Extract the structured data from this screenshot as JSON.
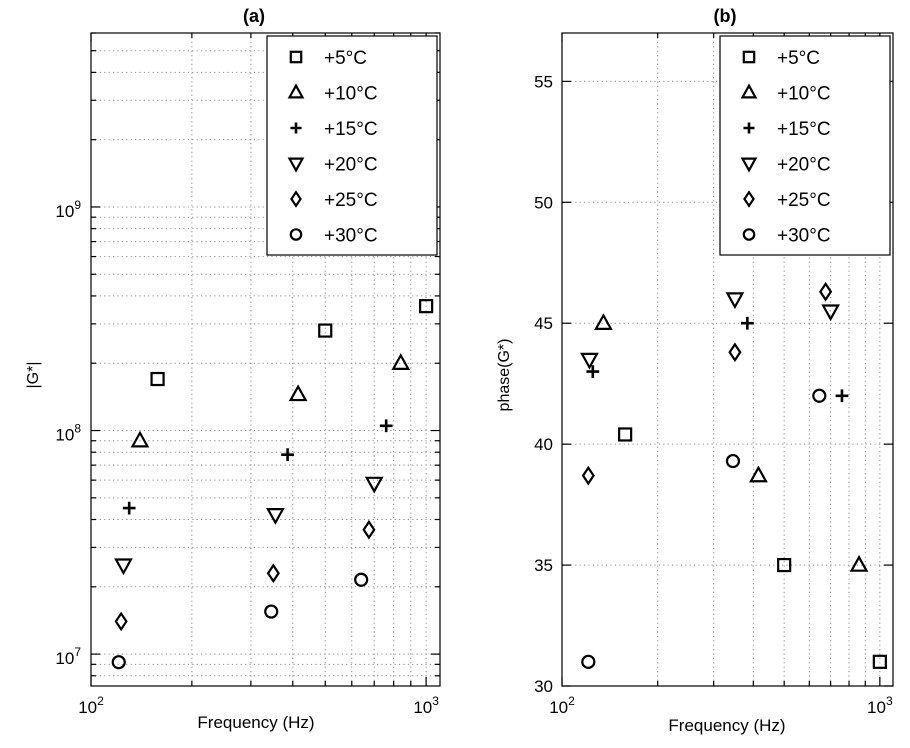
{
  "chart_data": [
    {
      "panel_label": "(a)",
      "type": "scatter",
      "xlabel": "Frequency (Hz)",
      "ylabel": "|G*|",
      "x_scale": "log",
      "y_scale": "log",
      "xlim": [
        100,
        1100
      ],
      "ylim": [
        7200000,
        6000000000
      ],
      "x_tick_labels": [
        {
          "value": 100,
          "base": "10",
          "exp": "2"
        },
        {
          "value": 1000,
          "base": "10",
          "exp": "3"
        }
      ],
      "y_tick_labels": [
        {
          "value": 10000000,
          "base": "10",
          "exp": "7"
        },
        {
          "value": 100000000,
          "base": "10",
          "exp": "8"
        },
        {
          "value": 1000000000,
          "base": "10",
          "exp": "9"
        }
      ],
      "grid": true,
      "legend_position": "top-right",
      "series": [
        {
          "name": "+5°C",
          "marker": "square",
          "points": [
            [
              158,
              170000000
            ],
            [
              500,
              280000000
            ],
            [
              1000,
              360000000
            ]
          ]
        },
        {
          "name": "+10°C",
          "marker": "triangle-up",
          "points": [
            [
              140,
              90000000
            ],
            [
              415,
              145000000
            ],
            [
              840,
              200000000
            ]
          ]
        },
        {
          "name": "+15°C",
          "marker": "plus",
          "points": [
            [
              130,
              45000000
            ],
            [
              386,
              78000000
            ],
            [
              760,
              105000000
            ]
          ]
        },
        {
          "name": "+20°C",
          "marker": "triangle-down",
          "points": [
            [
              125,
              25000000
            ],
            [
              355,
              42000000
            ],
            [
              700,
              58000000
            ]
          ]
        },
        {
          "name": "+25°C",
          "marker": "diamond",
          "points": [
            [
              123,
              14000000
            ],
            [
              350,
              23000000
            ],
            [
              675,
              36000000
            ]
          ]
        },
        {
          "name": "+30°C",
          "marker": "circle",
          "points": [
            [
              121,
              9200000
            ],
            [
              345,
              15500000
            ],
            [
              640,
              21500000
            ]
          ]
        }
      ]
    },
    {
      "panel_label": "(b)",
      "type": "scatter",
      "xlabel": "Frequency (Hz)",
      "ylabel": "phase(G*)",
      "x_scale": "log",
      "y_scale": "linear",
      "xlim": [
        100,
        1100
      ],
      "ylim": [
        30,
        57
      ],
      "x_tick_labels": [
        {
          "value": 100,
          "base": "10",
          "exp": "2"
        },
        {
          "value": 1000,
          "base": "10",
          "exp": "3"
        }
      ],
      "y_ticks": [
        30,
        35,
        40,
        45,
        50,
        55
      ],
      "grid": true,
      "legend_position": "top-right",
      "series": [
        {
          "name": "+5°C",
          "marker": "square",
          "points": [
            [
              158,
              40.4
            ],
            [
              500,
              35.0
            ],
            [
              1000,
              31.0
            ]
          ]
        },
        {
          "name": "+10°C",
          "marker": "triangle-up",
          "points": [
            [
              135,
              45.0
            ],
            [
              415,
              38.7
            ],
            [
              860,
              35.0
            ]
          ]
        },
        {
          "name": "+15°C",
          "marker": "plus",
          "points": [
            [
              125,
              43.0
            ],
            [
              383,
              45.0
            ],
            [
              760,
              42.0
            ]
          ]
        },
        {
          "name": "+20°C",
          "marker": "triangle-down",
          "points": [
            [
              122,
              43.5
            ],
            [
              350,
              46.0
            ],
            [
              700,
              45.5
            ]
          ]
        },
        {
          "name": "+25°C",
          "marker": "diamond",
          "points": [
            [
              121,
              38.7
            ],
            [
              350,
              43.8
            ],
            [
              675,
              46.3
            ]
          ]
        },
        {
          "name": "+30°C",
          "marker": "circle",
          "points": [
            [
              121,
              31.0
            ],
            [
              345,
              39.3
            ],
            [
              645,
              42.0
            ]
          ]
        }
      ]
    }
  ]
}
